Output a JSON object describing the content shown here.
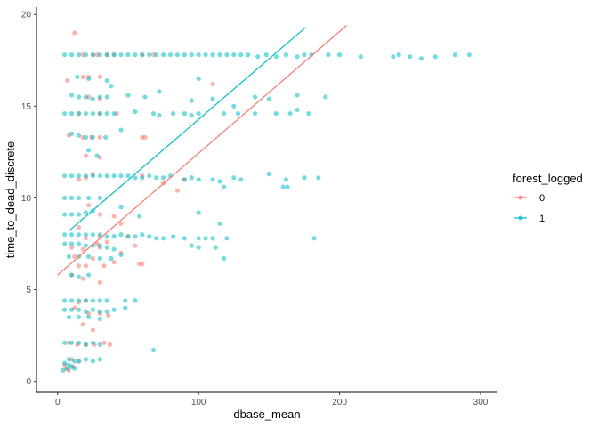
{
  "chart_data": {
    "type": "scatter",
    "xlabel": "dbase_mean",
    "ylabel": "time_to_dead_discrete",
    "xlim": [
      -15,
      312
    ],
    "ylim": [
      -0.6,
      20.4
    ],
    "x_ticks": [
      0,
      100,
      200,
      300
    ],
    "y_ticks": [
      0,
      5,
      10,
      15,
      20
    ],
    "grid": false,
    "legend": {
      "title": "forest_logged",
      "placement": "right",
      "entries": [
        "0",
        "1"
      ]
    },
    "colors": {
      "0": "#F8766D",
      "1": "#00BFC4"
    },
    "series": [
      {
        "name": "0",
        "color": "#F8766D",
        "trend_line": {
          "x": [
            0,
            205
          ],
          "y": [
            5.8,
            19.4
          ]
        },
        "points": [
          [
            12,
            19.0
          ],
          [
            28,
            17.8
          ],
          [
            35,
            17.8
          ],
          [
            40,
            17.8
          ],
          [
            68,
            17.8
          ],
          [
            60,
            17.8
          ],
          [
            25,
            17.8
          ],
          [
            18,
            17.8
          ],
          [
            18,
            16.6
          ],
          [
            22,
            16.6
          ],
          [
            30,
            16.6
          ],
          [
            110,
            16.2
          ],
          [
            7,
            16.4
          ],
          [
            22,
            15.5
          ],
          [
            30,
            15.4
          ],
          [
            15,
            14.6
          ],
          [
            30,
            14.6
          ],
          [
            42,
            14.6
          ],
          [
            8,
            13.4
          ],
          [
            18,
            13.3
          ],
          [
            24,
            13.3
          ],
          [
            30,
            13.3
          ],
          [
            60,
            13.3
          ],
          [
            62,
            13.3
          ],
          [
            20,
            12.3
          ],
          [
            30,
            12.2
          ],
          [
            15,
            11.0
          ],
          [
            20,
            11.1
          ],
          [
            25,
            11.3
          ],
          [
            60,
            11.2
          ],
          [
            85,
            10.4
          ],
          [
            75,
            10.8
          ],
          [
            90,
            11.0
          ],
          [
            22,
            9.6
          ],
          [
            30,
            9.1
          ],
          [
            40,
            9.0
          ],
          [
            45,
            8.6
          ],
          [
            15,
            8.4
          ],
          [
            20,
            7.8
          ],
          [
            30,
            7.9
          ],
          [
            50,
            7.9
          ],
          [
            35,
            7.6
          ],
          [
            28,
            7.5
          ],
          [
            10,
            7.3
          ],
          [
            18,
            7.2
          ],
          [
            30,
            7.3
          ],
          [
            45,
            7.0
          ],
          [
            55,
            7.4
          ],
          [
            12,
            6.8
          ],
          [
            25,
            6.7
          ],
          [
            40,
            6.5
          ],
          [
            58,
            6.4
          ],
          [
            60,
            6.4
          ],
          [
            15,
            6.3
          ],
          [
            20,
            6.3
          ],
          [
            33,
            6.3
          ],
          [
            10,
            5.8
          ],
          [
            18,
            5.6
          ],
          [
            30,
            5.4
          ],
          [
            15,
            4.3
          ],
          [
            20,
            4.4
          ],
          [
            12,
            4.0
          ],
          [
            22,
            3.7
          ],
          [
            30,
            3.7
          ],
          [
            36,
            3.6
          ],
          [
            18,
            3.1
          ],
          [
            25,
            2.8
          ],
          [
            8,
            2.1
          ],
          [
            14,
            2.0
          ],
          [
            20,
            2.0
          ],
          [
            26,
            2.0
          ],
          [
            33,
            2.1
          ],
          [
            37,
            2.0
          ],
          [
            10,
            1.2
          ],
          [
            15,
            1.1
          ],
          [
            5,
            0.9
          ],
          [
            6,
            0.7
          ],
          [
            8,
            0.6
          ],
          [
            11,
            0.8
          ]
        ]
      },
      {
        "name": "1",
        "color": "#00BFC4",
        "trend_line": {
          "x": [
            8,
            176
          ],
          "y": [
            8.2,
            19.3
          ]
        },
        "points": [
          [
            5,
            17.8
          ],
          [
            10,
            17.8
          ],
          [
            15,
            17.8
          ],
          [
            20,
            17.8
          ],
          [
            25,
            17.8
          ],
          [
            30,
            17.8
          ],
          [
            35,
            17.8
          ],
          [
            40,
            17.8
          ],
          [
            45,
            17.8
          ],
          [
            50,
            17.8
          ],
          [
            55,
            17.8
          ],
          [
            60,
            17.8
          ],
          [
            65,
            17.8
          ],
          [
            70,
            17.8
          ],
          [
            75,
            17.8
          ],
          [
            80,
            17.8
          ],
          [
            85,
            17.8
          ],
          [
            90,
            17.8
          ],
          [
            95,
            17.8
          ],
          [
            100,
            17.8
          ],
          [
            105,
            17.8
          ],
          [
            110,
            17.8
          ],
          [
            115,
            17.8
          ],
          [
            120,
            17.8
          ],
          [
            125,
            17.8
          ],
          [
            130,
            17.8
          ],
          [
            135,
            17.8
          ],
          [
            142,
            17.7
          ],
          [
            148,
            17.8
          ],
          [
            155,
            17.7
          ],
          [
            162,
            17.8
          ],
          [
            170,
            17.7
          ],
          [
            175,
            17.8
          ],
          [
            180,
            17.8
          ],
          [
            192,
            17.8
          ],
          [
            200,
            17.8
          ],
          [
            215,
            17.7
          ],
          [
            238,
            17.7
          ],
          [
            242,
            17.8
          ],
          [
            250,
            17.7
          ],
          [
            258,
            17.6
          ],
          [
            268,
            17.7
          ],
          [
            282,
            17.8
          ],
          [
            292,
            17.8
          ],
          [
            14,
            16.6
          ],
          [
            22,
            16.5
          ],
          [
            35,
            16.4
          ],
          [
            100,
            16.5
          ],
          [
            38,
            16.1
          ],
          [
            10,
            15.6
          ],
          [
            15,
            15.5
          ],
          [
            20,
            15.5
          ],
          [
            25,
            15.4
          ],
          [
            30,
            15.5
          ],
          [
            35,
            15.5
          ],
          [
            50,
            15.6
          ],
          [
            62,
            15.5
          ],
          [
            72,
            15.8
          ],
          [
            95,
            15.3
          ],
          [
            110,
            15.4
          ],
          [
            125,
            15.0
          ],
          [
            140,
            15.5
          ],
          [
            150,
            15.4
          ],
          [
            170,
            15.6
          ],
          [
            190,
            15.5
          ],
          [
            5,
            14.6
          ],
          [
            10,
            14.6
          ],
          [
            15,
            14.6
          ],
          [
            20,
            14.6
          ],
          [
            25,
            14.6
          ],
          [
            30,
            14.6
          ],
          [
            35,
            14.6
          ],
          [
            40,
            14.6
          ],
          [
            55,
            14.7
          ],
          [
            68,
            14.6
          ],
          [
            72,
            14.5
          ],
          [
            82,
            14.6
          ],
          [
            90,
            14.6
          ],
          [
            95,
            14.5
          ],
          [
            100,
            14.6
          ],
          [
            118,
            14.6
          ],
          [
            128,
            14.6
          ],
          [
            140,
            14.6
          ],
          [
            155,
            14.6
          ],
          [
            165,
            14.6
          ],
          [
            178,
            14.6
          ],
          [
            170,
            14.8
          ],
          [
            10,
            13.5
          ],
          [
            15,
            13.4
          ],
          [
            20,
            13.3
          ],
          [
            25,
            13.3
          ],
          [
            34,
            13.3
          ],
          [
            45,
            13.7
          ],
          [
            22,
            12.6
          ],
          [
            28,
            12.3
          ],
          [
            5,
            11.2
          ],
          [
            10,
            11.2
          ],
          [
            15,
            11.2
          ],
          [
            20,
            11.2
          ],
          [
            25,
            11.2
          ],
          [
            30,
            11.2
          ],
          [
            35,
            11.2
          ],
          [
            40,
            11.2
          ],
          [
            45,
            11.2
          ],
          [
            50,
            11.2
          ],
          [
            55,
            11.1
          ],
          [
            60,
            11.1
          ],
          [
            65,
            11.2
          ],
          [
            70,
            11.1
          ],
          [
            75,
            11.1
          ],
          [
            80,
            11.2
          ],
          [
            90,
            11.0
          ],
          [
            95,
            11.1
          ],
          [
            100,
            11.0
          ],
          [
            110,
            11.0
          ],
          [
            115,
            10.9
          ],
          [
            125,
            11.1
          ],
          [
            130,
            11.0
          ],
          [
            150,
            11.3
          ],
          [
            162,
            11.0
          ],
          [
            175,
            11.1
          ],
          [
            185,
            11.1
          ],
          [
            118,
            10.6
          ],
          [
            160,
            10.6
          ],
          [
            163,
            10.6
          ],
          [
            5,
            10.0
          ],
          [
            10,
            10.0
          ],
          [
            15,
            10.0
          ],
          [
            22,
            10.0
          ],
          [
            30,
            10.0
          ],
          [
            5,
            9.1
          ],
          [
            10,
            9.1
          ],
          [
            15,
            9.1
          ],
          [
            20,
            9.2
          ],
          [
            25,
            9.3
          ],
          [
            45,
            9.5
          ],
          [
            58,
            9.0
          ],
          [
            100,
            9.2
          ],
          [
            115,
            8.6
          ],
          [
            5,
            8.0
          ],
          [
            10,
            8.0
          ],
          [
            15,
            8.0
          ],
          [
            20,
            8.0
          ],
          [
            25,
            8.0
          ],
          [
            30,
            8.0
          ],
          [
            35,
            7.9
          ],
          [
            40,
            7.9
          ],
          [
            45,
            8.0
          ],
          [
            50,
            7.9
          ],
          [
            55,
            7.9
          ],
          [
            60,
            8.0
          ],
          [
            65,
            7.9
          ],
          [
            70,
            7.8
          ],
          [
            75,
            7.8
          ],
          [
            82,
            7.9
          ],
          [
            90,
            7.8
          ],
          [
            100,
            7.8
          ],
          [
            105,
            7.8
          ],
          [
            110,
            7.8
          ],
          [
            120,
            7.8
          ],
          [
            182,
            7.8
          ],
          [
            5,
            7.5
          ],
          [
            10,
            7.5
          ],
          [
            15,
            7.5
          ],
          [
            20,
            7.4
          ],
          [
            25,
            7.4
          ],
          [
            30,
            7.4
          ],
          [
            35,
            7.3
          ],
          [
            40,
            7.2
          ],
          [
            95,
            7.4
          ],
          [
            100,
            7.3
          ],
          [
            112,
            7.3
          ],
          [
            118,
            6.7
          ],
          [
            8,
            6.8
          ],
          [
            15,
            6.8
          ],
          [
            22,
            6.8
          ],
          [
            30,
            6.7
          ],
          [
            38,
            6.7
          ],
          [
            45,
            6.9
          ],
          [
            10,
            5.8
          ],
          [
            15,
            5.7
          ],
          [
            22,
            5.8
          ],
          [
            5,
            4.4
          ],
          [
            10,
            4.4
          ],
          [
            15,
            4.4
          ],
          [
            20,
            4.4
          ],
          [
            25,
            4.4
          ],
          [
            30,
            4.4
          ],
          [
            35,
            4.4
          ],
          [
            48,
            4.4
          ],
          [
            55,
            4.4
          ],
          [
            5,
            3.9
          ],
          [
            10,
            3.9
          ],
          [
            15,
            3.9
          ],
          [
            20,
            3.8
          ],
          [
            25,
            3.9
          ],
          [
            30,
            3.8
          ],
          [
            35,
            3.8
          ],
          [
            40,
            3.9
          ],
          [
            48,
            4.0
          ],
          [
            8,
            3.5
          ],
          [
            15,
            3.5
          ],
          [
            22,
            3.5
          ],
          [
            30,
            3.4
          ],
          [
            5,
            2.1
          ],
          [
            10,
            2.1
          ],
          [
            15,
            2.1
          ],
          [
            20,
            2.0
          ],
          [
            25,
            2.1
          ],
          [
            30,
            2.0
          ],
          [
            8,
            1.2
          ],
          [
            12,
            1.1
          ],
          [
            15,
            1.1
          ],
          [
            20,
            1.2
          ],
          [
            25,
            1.1
          ],
          [
            30,
            1.2
          ],
          [
            5,
            1.0
          ],
          [
            8,
            0.9
          ],
          [
            10,
            0.8
          ],
          [
            4,
            0.6
          ],
          [
            7,
            0.7
          ],
          [
            12,
            0.7
          ],
          [
            68,
            1.7
          ]
        ]
      }
    ]
  }
}
